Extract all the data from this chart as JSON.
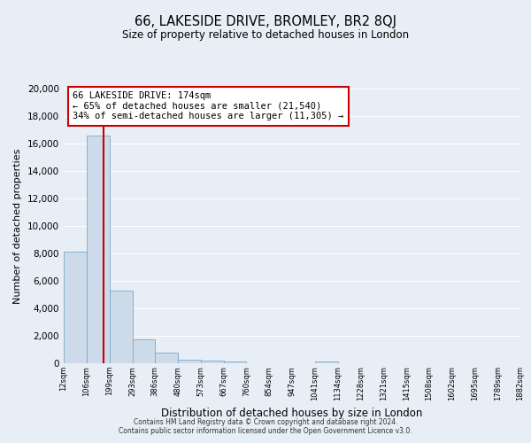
{
  "title": "66, LAKESIDE DRIVE, BROMLEY, BR2 8QJ",
  "subtitle": "Size of property relative to detached houses in London",
  "xlabel": "Distribution of detached houses by size in London",
  "ylabel": "Number of detached properties",
  "bar_color": "#ccdaea",
  "bar_edge_color": "#7aaac8",
  "background_color": "#e8eef5",
  "grid_color": "#ffffff",
  "property_line_x": 174,
  "property_line_color": "#cc0000",
  "annotation_title": "66 LAKESIDE DRIVE: 174sqm",
  "annotation_line1": "← 65% of detached houses are smaller (21,540)",
  "annotation_line2": "34% of semi-detached houses are larger (11,305) →",
  "annotation_box_color": "#ffffff",
  "annotation_box_edge": "#cc0000",
  "bin_edges": [
    12,
    106,
    199,
    293,
    386,
    480,
    573,
    667,
    760,
    854,
    947,
    1041,
    1134,
    1228,
    1321,
    1415,
    1508,
    1602,
    1695,
    1789,
    1882
  ],
  "bin_labels": [
    "12sqm",
    "106sqm",
    "199sqm",
    "293sqm",
    "386sqm",
    "480sqm",
    "573sqm",
    "667sqm",
    "760sqm",
    "854sqm",
    "947sqm",
    "1041sqm",
    "1134sqm",
    "1228sqm",
    "1321sqm",
    "1415sqm",
    "1508sqm",
    "1602sqm",
    "1695sqm",
    "1789sqm",
    "1882sqm"
  ],
  "bar_heights": [
    8100,
    16600,
    5300,
    1750,
    750,
    280,
    210,
    130,
    0,
    0,
    0,
    120,
    0,
    0,
    0,
    0,
    0,
    0,
    0,
    0
  ],
  "ylim": [
    0,
    20000
  ],
  "yticks": [
    0,
    2000,
    4000,
    6000,
    8000,
    10000,
    12000,
    14000,
    16000,
    18000,
    20000
  ],
  "footer_line1": "Contains HM Land Registry data © Crown copyright and database right 2024.",
  "footer_line2": "Contains public sector information licensed under the Open Government Licence v3.0."
}
